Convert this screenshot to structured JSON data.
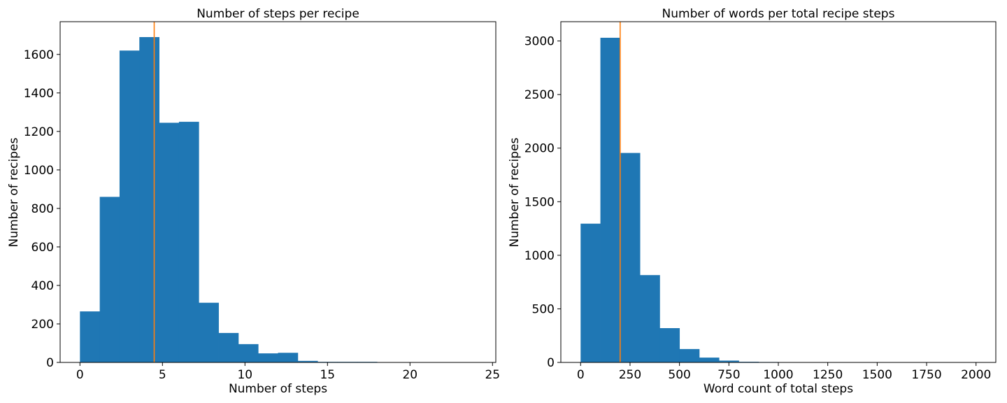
{
  "chart_data": [
    {
      "type": "bar",
      "title": "Number of steps per recipe",
      "xlabel": "Number of steps",
      "ylabel": "Number of recipes",
      "xlim": [
        -1.2,
        25.2
      ],
      "ylim": [
        0,
        1770
      ],
      "x_ticks": [
        0,
        5,
        10,
        15,
        20,
        25
      ],
      "y_ticks": [
        0,
        200,
        400,
        600,
        800,
        1000,
        1200,
        1400,
        1600
      ],
      "bin_edges": [
        0,
        1.2,
        2.4,
        3.6,
        4.8,
        6.0,
        7.2,
        8.4,
        9.6,
        10.8,
        12.0,
        13.2,
        14.4,
        15.6,
        16.8,
        18.0,
        19.2,
        20.4,
        21.6,
        22.8,
        24.0
      ],
      "values": [
        265,
        860,
        1620,
        1690,
        1245,
        1250,
        310,
        153,
        95,
        47,
        50,
        8,
        3,
        3,
        3,
        0,
        0,
        0,
        0,
        0
      ],
      "median_line": 4.5,
      "bar_color": "#1f77b4",
      "line_color": "#ff7f0e"
    },
    {
      "type": "bar",
      "title": "Number of words per total recipe steps",
      "xlabel": "Word count of total steps",
      "ylabel": "Number of recipes",
      "xlim": [
        -100,
        2100
      ],
      "ylim": [
        0,
        3180
      ],
      "x_ticks": [
        0,
        250,
        500,
        750,
        1000,
        1250,
        1500,
        1750,
        2000
      ],
      "y_ticks": [
        0,
        500,
        1000,
        1500,
        2000,
        2500,
        3000
      ],
      "bin_edges": [
        0,
        100,
        200,
        300,
        400,
        500,
        600,
        700,
        800,
        900,
        1000,
        1100,
        1200,
        1300,
        1400,
        1500,
        1600,
        1700,
        1800,
        1900,
        2000
      ],
      "values": [
        1295,
        3030,
        1955,
        815,
        320,
        125,
        45,
        17,
        6,
        4,
        0,
        0,
        0,
        0,
        0,
        0,
        0,
        0,
        0,
        0
      ],
      "median_line": 200,
      "bar_color": "#1f77b4",
      "line_color": "#ff7f0e"
    }
  ]
}
